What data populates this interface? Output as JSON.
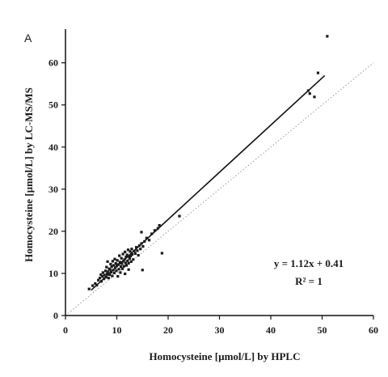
{
  "chart_data": {
    "type": "scatter",
    "panel_label": "A",
    "xlabel": "Homocysteine [µmol/L] by HPLC",
    "ylabel": "Homocysteine [µmol/L] by LC-MS/MS",
    "xlim": [
      0,
      60
    ],
    "ylim": [
      0,
      68
    ],
    "xticks": [
      0,
      10,
      20,
      30,
      40,
      50,
      60
    ],
    "yticks": [
      0,
      10,
      20,
      30,
      40,
      50,
      60
    ],
    "grid": false,
    "legend": "none",
    "equation": "y = 1.12x + 0.41",
    "r_squared": "R² = 1",
    "fit_line": {
      "slope": 1.12,
      "intercept": 0.41,
      "x": [
        5,
        50.5
      ]
    },
    "identity_line": {
      "x": [
        0,
        60
      ],
      "y": [
        0,
        60
      ]
    },
    "points": [
      [
        4.6,
        6.3
      ],
      [
        5.3,
        7.1
      ],
      [
        5.8,
        7.6
      ],
      [
        6.1,
        7.2
      ],
      [
        6.4,
        8.4
      ],
      [
        6.7,
        8.9
      ],
      [
        6.9,
        9.7
      ],
      [
        7.0,
        8.1
      ],
      [
        7.2,
        9.3
      ],
      [
        7.3,
        10.2
      ],
      [
        7.5,
        8.7
      ],
      [
        7.6,
        9.6
      ],
      [
        7.8,
        10.6
      ],
      [
        7.9,
        9.1
      ],
      [
        8.0,
        11.5
      ],
      [
        8.1,
        9.9
      ],
      [
        8.2,
        12.8
      ],
      [
        8.3,
        10.4
      ],
      [
        8.4,
        8.9
      ],
      [
        8.5,
        11.1
      ],
      [
        8.6,
        9.7
      ],
      [
        8.7,
        10.9
      ],
      [
        8.8,
        12.2
      ],
      [
        8.9,
        10.3
      ],
      [
        9.0,
        11.6
      ],
      [
        9.1,
        9.4
      ],
      [
        9.2,
        12.9
      ],
      [
        9.3,
        10.8
      ],
      [
        9.4,
        11.9
      ],
      [
        9.5,
        10.1
      ],
      [
        9.6,
        13.4
      ],
      [
        9.7,
        11.3
      ],
      [
        9.8,
        12.4
      ],
      [
        9.9,
        10.6
      ],
      [
        10.0,
        11.8
      ],
      [
        10.1,
        13.1
      ],
      [
        10.2,
        9.3
      ],
      [
        10.3,
        12.1
      ],
      [
        10.4,
        11.0
      ],
      [
        10.5,
        14.2
      ],
      [
        10.6,
        12.7
      ],
      [
        10.7,
        10.2
      ],
      [
        10.8,
        11.6
      ],
      [
        10.9,
        13.6
      ],
      [
        11.0,
        12.3
      ],
      [
        11.1,
        11.1
      ],
      [
        11.2,
        14.6
      ],
      [
        11.3,
        12.9
      ],
      [
        11.4,
        11.7
      ],
      [
        11.5,
        13.3
      ],
      [
        11.6,
        15.1
      ],
      [
        11.7,
        12.5
      ],
      [
        11.8,
        13.9
      ],
      [
        11.9,
        11.9
      ],
      [
        12.0,
        14.4
      ],
      [
        12.1,
        13.0
      ],
      [
        12.2,
        15.6
      ],
      [
        12.3,
        12.4
      ],
      [
        12.4,
        14.0
      ],
      [
        12.5,
        13.5
      ],
      [
        12.6,
        15.2
      ],
      [
        12.7,
        14.1
      ],
      [
        12.8,
        12.8
      ],
      [
        12.9,
        15.8
      ],
      [
        13.0,
        14.5
      ],
      [
        13.2,
        13.3
      ],
      [
        13.4,
        15.3
      ],
      [
        13.6,
        14.7
      ],
      [
        13.8,
        16.2
      ],
      [
        14.0,
        15.4
      ],
      [
        14.2,
        14.3
      ],
      [
        14.4,
        16.6
      ],
      [
        14.6,
        15.8
      ],
      [
        14.8,
        17.1
      ],
      [
        15.1,
        16.4
      ],
      [
        15.4,
        17.6
      ],
      [
        15.8,
        18.4
      ],
      [
        16.3,
        17.9
      ],
      [
        16.8,
        19.4
      ],
      [
        17.4,
        20.2
      ],
      [
        18.0,
        20.7
      ],
      [
        18.3,
        21.4
      ],
      [
        12.3,
        10.9
      ],
      [
        11.6,
        9.9
      ],
      [
        15.0,
        10.8
      ],
      [
        14.8,
        19.8
      ],
      [
        18.8,
        14.8
      ],
      [
        22.2,
        23.6
      ],
      [
        47.3,
        53.4
      ],
      [
        47.6,
        52.7
      ],
      [
        48.5,
        51.9
      ],
      [
        49.2,
        57.6
      ],
      [
        51.0,
        66.3
      ]
    ]
  }
}
